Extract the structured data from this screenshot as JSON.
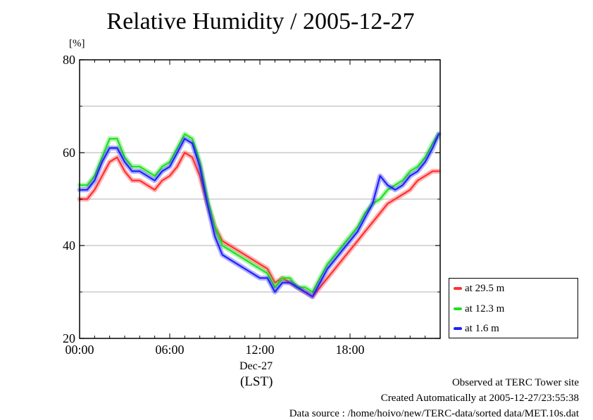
{
  "page": {
    "title": "Relative Humidity / 2005-12-27",
    "footer": [
      "Observed at TERC Tower site",
      "Created Automatically at 2005-12-27/23:55:38",
      "Data source : /home/hoivo/new/TERC-data/sorted  data/MET.10s.dat"
    ]
  },
  "chart_data": {
    "type": "line",
    "title": "Relative Humidity / 2005-12-27",
    "ylabel": "[%]",
    "xlabel": "(LST)",
    "date_label": "Dec-27",
    "ylim": [
      20,
      80
    ],
    "yticks": [
      20,
      40,
      60,
      80
    ],
    "ytick_labels": [
      "20",
      "40",
      "60",
      "80"
    ],
    "xlim": [
      0,
      24
    ],
    "xticks": [
      0,
      6,
      12,
      18
    ],
    "xtick_labels": [
      "00:00",
      "06:00",
      "12:00",
      "18:00"
    ],
    "grid": true,
    "legend_position": "bottom-right, outside plot",
    "x": [
      0,
      0.5,
      1,
      1.5,
      2,
      2.5,
      3,
      3.5,
      4,
      4.5,
      5,
      5.5,
      6,
      6.5,
      7,
      7.5,
      8,
      8.5,
      9,
      9.5,
      10,
      10.5,
      11,
      11.5,
      12,
      12.5,
      13,
      13.5,
      14,
      14.5,
      15,
      15.5,
      16,
      16.5,
      17,
      17.5,
      18,
      18.5,
      19,
      19.5,
      20,
      20.5,
      21,
      21.5,
      22,
      22.5,
      23,
      23.5,
      23.9
    ],
    "series": [
      {
        "name": "at 29.5 m",
        "color": "#ff3030",
        "values": [
          50,
          50,
          52,
          55,
          58,
          59,
          56,
          54,
          54,
          53,
          52,
          54,
          55,
          57,
          60,
          59,
          55,
          49,
          44,
          41,
          40,
          39,
          38,
          37,
          36,
          35,
          32,
          33,
          32,
          31,
          30,
          29,
          31,
          33,
          35,
          37,
          39,
          41,
          43,
          45,
          47,
          49,
          50,
          51,
          52,
          54,
          55,
          56,
          56
        ]
      },
      {
        "name": "at 12.3 m",
        "color": "#20e020",
        "values": [
          53,
          53,
          55,
          59,
          63,
          63,
          59,
          57,
          57,
          56,
          55,
          57,
          58,
          61,
          64,
          63,
          58,
          50,
          44,
          40,
          39,
          38,
          37,
          36,
          35,
          34,
          31,
          33,
          33,
          31,
          31,
          30,
          33,
          36,
          38,
          40,
          42,
          44,
          47,
          49,
          50,
          52,
          53,
          54,
          56,
          57,
          59,
          62,
          64
        ]
      },
      {
        "name": "at 1.6 m",
        "color": "#2020ff",
        "values": [
          52,
          52,
          54,
          58,
          61,
          61,
          58,
          56,
          56,
          55,
          54,
          56,
          57,
          60,
          63,
          62,
          57,
          49,
          42,
          38,
          37,
          36,
          35,
          34,
          33,
          33,
          30,
          32,
          32,
          31,
          30,
          29,
          32,
          35,
          37,
          39,
          41,
          43,
          46,
          49,
          55,
          53,
          52,
          53,
          55,
          56,
          58,
          61,
          64
        ]
      }
    ]
  }
}
